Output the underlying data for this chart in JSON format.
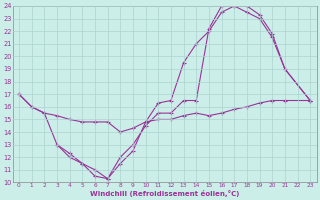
{
  "xlabel": "Windchill (Refroidissement éolien,°C)",
  "background_color": "#cceee8",
  "grid_color": "#aad4ce",
  "line_color": "#993399",
  "xlim": [
    -0.5,
    23.5
  ],
  "ylim": [
    10,
    24
  ],
  "yticks": [
    10,
    11,
    12,
    13,
    14,
    15,
    16,
    17,
    18,
    19,
    20,
    21,
    22,
    23,
    24
  ],
  "xticks": [
    0,
    1,
    2,
    3,
    4,
    5,
    6,
    7,
    8,
    9,
    10,
    11,
    12,
    13,
    14,
    15,
    16,
    17,
    18,
    19,
    20,
    21,
    22,
    23
  ],
  "line1_x": [
    0,
    1,
    2,
    3,
    4,
    5,
    6,
    7,
    8,
    9,
    10,
    11,
    12,
    13,
    14,
    15,
    16,
    17,
    18,
    19,
    20,
    21,
    23
  ],
  "line1_y": [
    17.0,
    16.0,
    15.5,
    13.0,
    12.0,
    11.5,
    10.5,
    10.3,
    11.5,
    12.5,
    14.8,
    16.3,
    16.5,
    19.5,
    21.0,
    22.0,
    23.5,
    24.0,
    24.0,
    23.3,
    21.8,
    19.0,
    16.5
  ],
  "line2_x": [
    0,
    1,
    2,
    3,
    4,
    5,
    6,
    7,
    8,
    9,
    10,
    11,
    12,
    13,
    14,
    15,
    16,
    17,
    18,
    19,
    20,
    21,
    23
  ],
  "line2_y": [
    17.0,
    16.0,
    15.5,
    15.3,
    15.0,
    14.8,
    14.8,
    14.8,
    14.0,
    14.3,
    14.8,
    15.0,
    15.0,
    15.3,
    15.5,
    15.3,
    15.5,
    15.8,
    16.0,
    16.3,
    16.5,
    16.5,
    16.5
  ],
  "line3_x": [
    3,
    4,
    5,
    6,
    7,
    8,
    9,
    10,
    11,
    12,
    13,
    14,
    15,
    16,
    17,
    18,
    19,
    20,
    21,
    23
  ],
  "line3_y": [
    13.0,
    12.3,
    11.5,
    11.0,
    10.3,
    12.0,
    13.0,
    14.5,
    15.5,
    15.5,
    16.5,
    16.5,
    22.2,
    24.0,
    24.0,
    23.5,
    23.0,
    21.5,
    19.0,
    16.5
  ],
  "figsize": [
    3.2,
    2.0
  ],
  "dpi": 100
}
